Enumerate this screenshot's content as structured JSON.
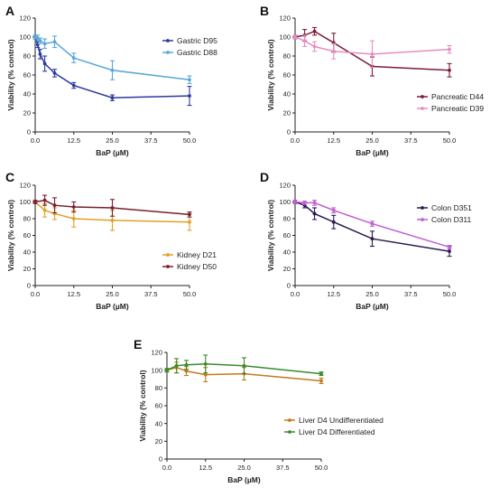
{
  "chart_data": [
    {
      "panel": "A",
      "type": "line",
      "xlabel": "BaP (µM)",
      "ylabel": "Viability (% control)",
      "xlim": [
        0,
        50
      ],
      "ylim": [
        0,
        120
      ],
      "xticks": [
        "0.0",
        "12.5",
        "25.0",
        "37.5",
        "50.0"
      ],
      "yticks": [
        "0",
        "20",
        "40",
        "60",
        "80",
        "100",
        "120"
      ],
      "legend_position": "top-right",
      "x": [
        0,
        0.8,
        1.6,
        3.1,
        6.3,
        12.5,
        25,
        50
      ],
      "series": [
        {
          "name": "Gastric D95",
          "color": "#2c3a9e",
          "values": [
            100,
            92,
            82,
            72,
            62,
            49,
            36,
            38
          ],
          "errors": [
            2,
            3,
            5,
            8,
            4,
            3,
            3,
            10
          ]
        },
        {
          "name": "Gastric D88",
          "color": "#5aa7d8",
          "values": [
            100,
            99,
            96,
            93,
            95,
            78,
            65,
            55
          ],
          "errors": [
            2,
            3,
            3,
            5,
            6,
            5,
            10,
            4
          ]
        }
      ]
    },
    {
      "panel": "B",
      "type": "line",
      "xlabel": "BaP (µM)",
      "ylabel": "Viability (% control)",
      "xlim": [
        0,
        50
      ],
      "ylim": [
        0,
        120
      ],
      "xticks": [
        "0.0",
        "12.5",
        "25.0",
        "37.5",
        "50.0"
      ],
      "yticks": [
        "0",
        "20",
        "40",
        "60",
        "80",
        "100",
        "120"
      ],
      "legend_position": "bottom-right",
      "x": [
        0,
        3.1,
        6.3,
        12.5,
        25,
        50
      ],
      "series": [
        {
          "name": "Pancreatic D44",
          "color": "#7a1d3c",
          "values": [
            100,
            102,
            106,
            94,
            69,
            65
          ],
          "errors": [
            2,
            6,
            4,
            10,
            10,
            7
          ]
        },
        {
          "name": "Pancreatic D39",
          "color": "#e58ec3",
          "values": [
            100,
            96,
            90,
            85,
            82,
            87
          ],
          "errors": [
            2,
            6,
            5,
            8,
            14,
            4
          ]
        }
      ]
    },
    {
      "panel": "C",
      "type": "line",
      "xlabel": "BaP (µM)",
      "ylabel": "Viability (% control)",
      "xlim": [
        0,
        50
      ],
      "ylim": [
        0,
        120
      ],
      "xticks": [
        "0.0",
        "12.5",
        "25.0",
        "37.5",
        "50.0"
      ],
      "yticks": [
        "0",
        "20",
        "40",
        "60",
        "80",
        "100",
        "120"
      ],
      "legend_position": "bottom-right",
      "x": [
        0,
        3.1,
        6.3,
        12.5,
        25,
        50
      ],
      "series": [
        {
          "name": "Kidney D21",
          "color": "#e0a127",
          "values": [
            100,
            90,
            86,
            80,
            78,
            76
          ],
          "errors": [
            2,
            8,
            7,
            10,
            12,
            10
          ]
        },
        {
          "name": "Kidney D50",
          "color": "#7a1f2c",
          "values": [
            100,
            102,
            96,
            94,
            93,
            85
          ],
          "errors": [
            2,
            6,
            9,
            6,
            10,
            3
          ]
        }
      ]
    },
    {
      "panel": "D",
      "type": "line",
      "xlabel": "BaP (µM)",
      "ylabel": "Viability (% control)",
      "xlim": [
        0,
        50
      ],
      "ylim": [
        0,
        120
      ],
      "xticks": [
        "0.0",
        "12.5",
        "25.0",
        "37.5",
        "50.0"
      ],
      "yticks": [
        "0",
        "20",
        "40",
        "60",
        "80",
        "100",
        "120"
      ],
      "legend_position": "top-right",
      "x": [
        0,
        3.1,
        6.3,
        12.5,
        25,
        50
      ],
      "series": [
        {
          "name": "Colon D351",
          "color": "#2d1a4f",
          "values": [
            100,
            96,
            86,
            76,
            56,
            41
          ],
          "errors": [
            2,
            3,
            7,
            8,
            9,
            6
          ]
        },
        {
          "name": "Colon D311",
          "color": "#c05fd3",
          "values": [
            100,
            99,
            99,
            90,
            74,
            46
          ],
          "errors": [
            2,
            2,
            3,
            3,
            3,
            2
          ]
        }
      ]
    },
    {
      "panel": "E",
      "type": "line",
      "xlabel": "BaP (µM)",
      "ylabel": "Viability (% control)",
      "xlim": [
        0,
        50
      ],
      "ylim": [
        0,
        120
      ],
      "xticks": [
        "0.0",
        "12.5",
        "25.0",
        "37.5",
        "50.0"
      ],
      "yticks": [
        "0",
        "20",
        "40",
        "60",
        "80",
        "100",
        "120"
      ],
      "legend_position": "bottom-right",
      "x": [
        0,
        3.1,
        6.3,
        12.5,
        25,
        50
      ],
      "series": [
        {
          "name": "Liver D4 Undifferentiated",
          "color": "#c47a1a",
          "values": [
            100,
            103,
            99,
            95,
            96,
            88
          ],
          "errors": [
            2,
            6,
            5,
            8,
            7,
            3
          ]
        },
        {
          "name": "Liver D4 Differentiated",
          "color": "#3a8a2e",
          "values": [
            100,
            105,
            106,
            107,
            105,
            96
          ],
          "errors": [
            2,
            8,
            5,
            10,
            9,
            2
          ]
        }
      ]
    }
  ]
}
